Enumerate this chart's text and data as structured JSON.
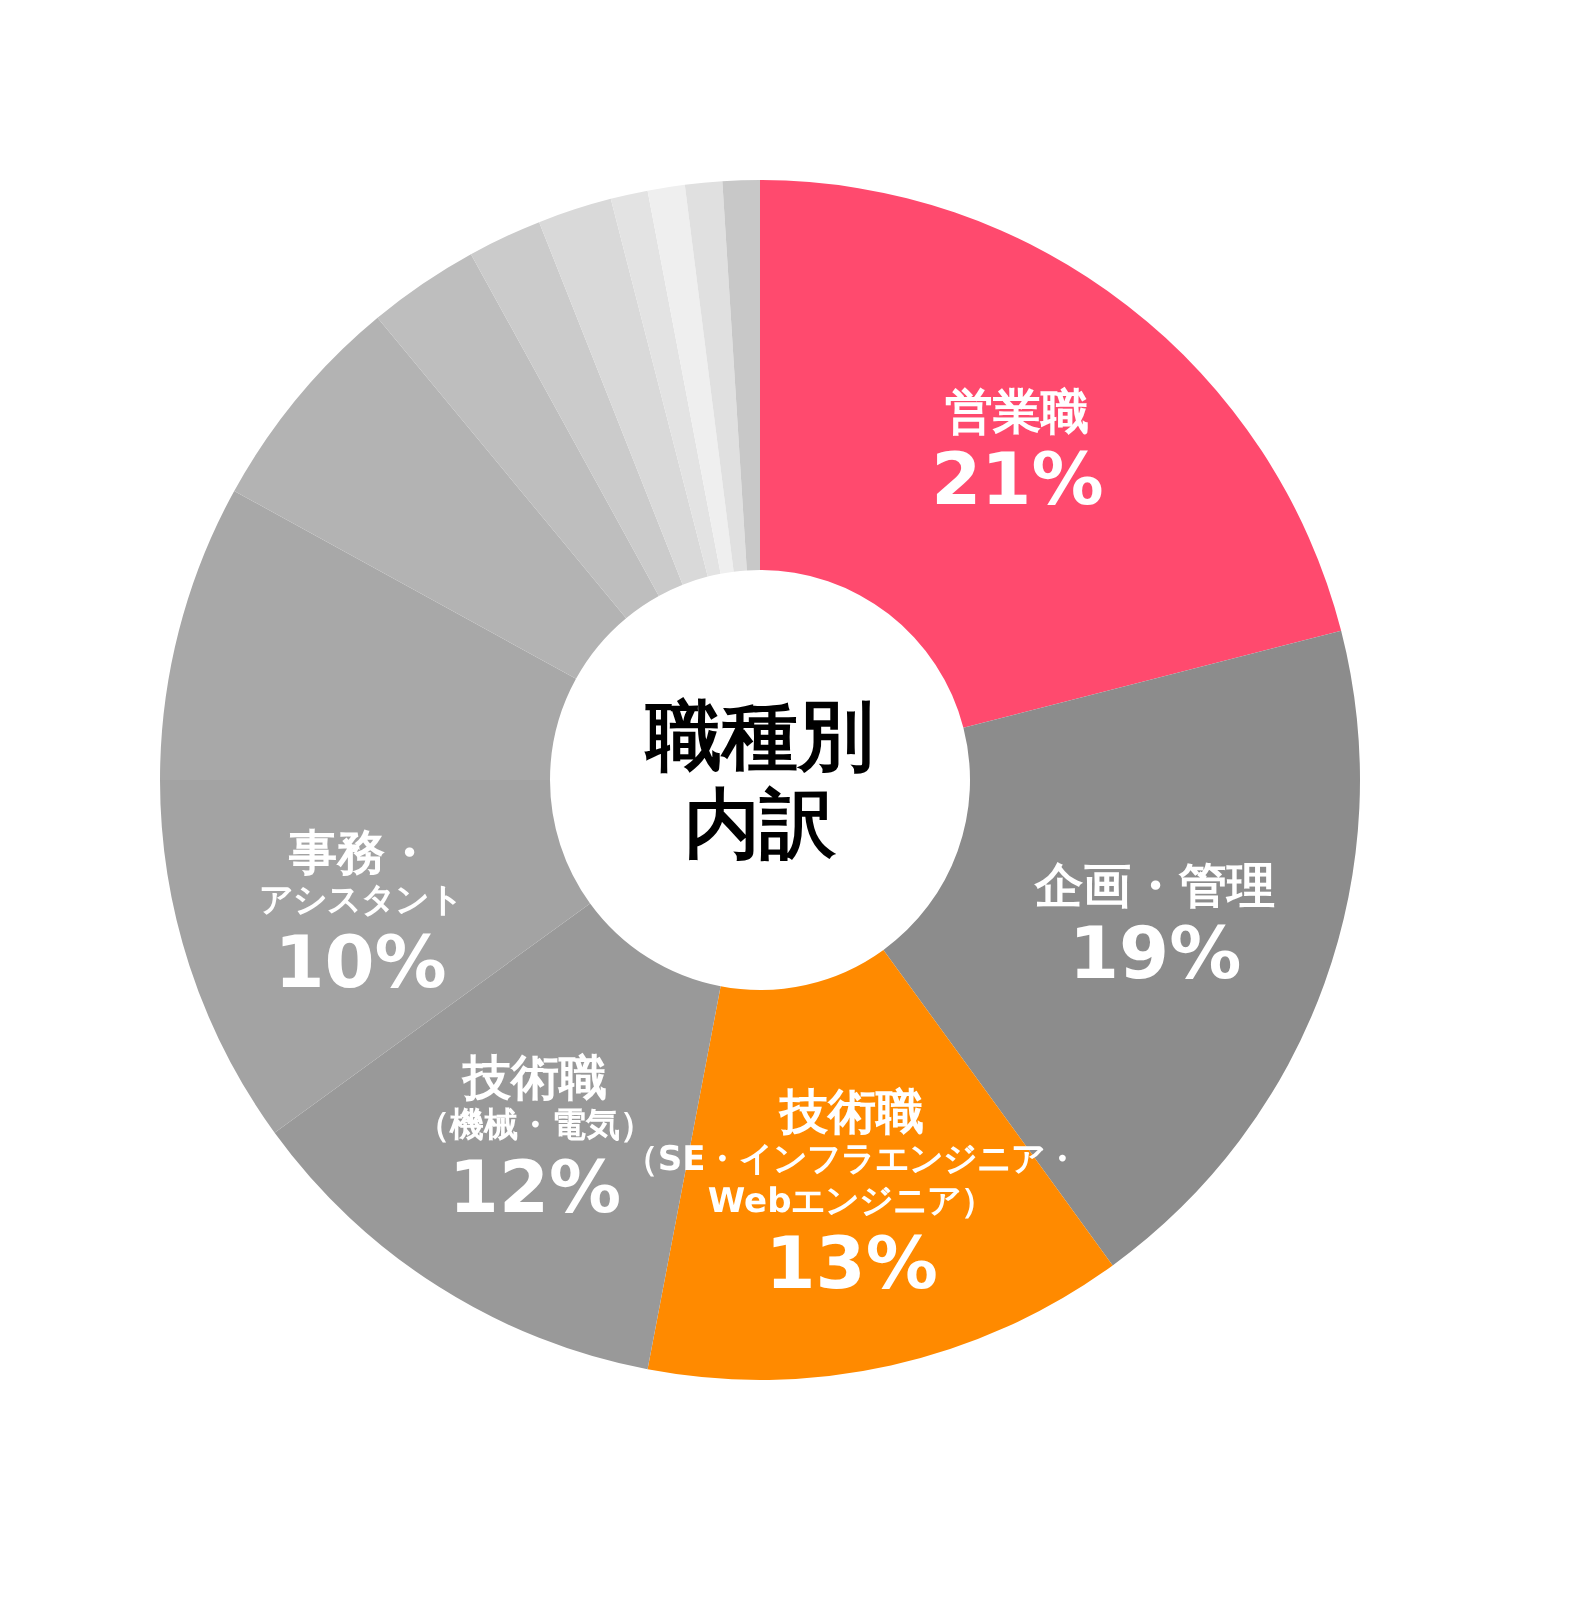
{
  "chart_data": {
    "type": "donut",
    "title": "職種別内訳",
    "categories": [
      "営業職",
      "企画・管理",
      "技術職（SE・インフラエンジニア・Webエンジニア）",
      "技術職（機械・電気）",
      "事務・アシスタント",
      null,
      null,
      null,
      null,
      null,
      null,
      null,
      null,
      null
    ],
    "values": [
      21,
      19,
      13,
      12,
      10,
      8,
      6,
      3,
      2,
      2,
      1,
      1,
      1,
      1
    ],
    "value_labels": [
      "21%",
      "19%",
      "13%",
      "12%",
      "10%",
      null,
      null,
      null,
      null,
      null,
      null,
      null,
      null,
      null
    ],
    "colors": [
      "#ff4a6e",
      "#8c8c8c",
      "#ff8a00",
      "#999999",
      "#a3a3a3",
      "#a8a8a8",
      "#b3b3b3",
      "#bebebe",
      "#cbcbcb",
      "#d9d9d9",
      "#e3e3e3",
      "#efefef",
      "#e0e0e0",
      "#c8c8c8"
    ],
    "legend": false
  }
}
